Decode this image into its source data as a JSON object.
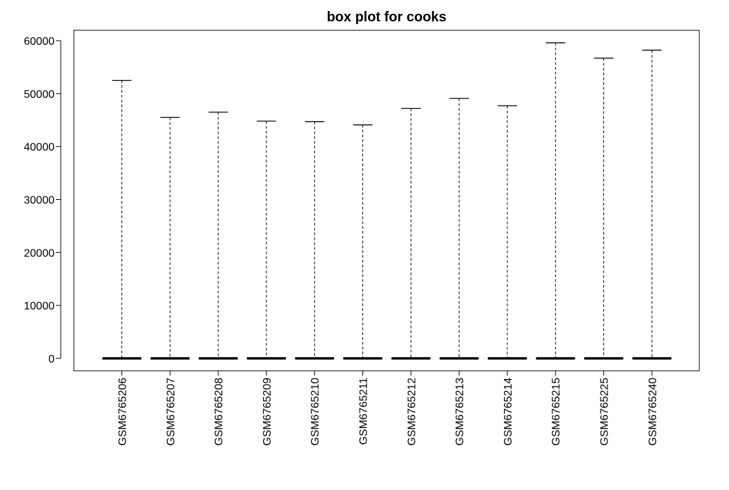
{
  "chart_data": {
    "type": "box",
    "title": "box plot for cooks",
    "xlabel": "",
    "ylabel": "",
    "ylim": [
      0,
      60000
    ],
    "yticks": [
      0,
      10000,
      20000,
      30000,
      40000,
      50000,
      60000
    ],
    "yticklabels": [
      "0",
      "10000",
      "20000",
      "30000",
      "40000",
      "50000",
      "60000"
    ],
    "grid": false,
    "categories": [
      "GSM6765206",
      "GSM6765207",
      "GSM6765208",
      "GSM6765209",
      "GSM6765210",
      "GSM6765211",
      "GSM6765212",
      "GSM6765213",
      "GSM6765214",
      "GSM6765215",
      "GSM6765225",
      "GSM6765240"
    ],
    "boxes": [
      {
        "min": 0,
        "q1": 0,
        "median": 0,
        "q3": 0,
        "max": 52500
      },
      {
        "min": 0,
        "q1": 0,
        "median": 0,
        "q3": 0,
        "max": 45500
      },
      {
        "min": 0,
        "q1": 0,
        "median": 0,
        "q3": 0,
        "max": 46500
      },
      {
        "min": 0,
        "q1": 0,
        "median": 0,
        "q3": 0,
        "max": 44800
      },
      {
        "min": 0,
        "q1": 0,
        "median": 0,
        "q3": 0,
        "max": 44700
      },
      {
        "min": 0,
        "q1": 0,
        "median": 0,
        "q3": 0,
        "max": 44100
      },
      {
        "min": 0,
        "q1": 0,
        "median": 0,
        "q3": 0,
        "max": 47200
      },
      {
        "min": 0,
        "q1": 0,
        "median": 0,
        "q3": 0,
        "max": 49100
      },
      {
        "min": 0,
        "q1": 0,
        "median": 0,
        "q3": 0,
        "max": 47700
      },
      {
        "min": 0,
        "q1": 0,
        "median": 0,
        "q3": 0,
        "max": 59600
      },
      {
        "min": 0,
        "q1": 0,
        "median": 0,
        "q3": 0,
        "max": 56700
      },
      {
        "min": 0,
        "q1": 0,
        "median": 0,
        "q3": 0,
        "max": 58200
      }
    ],
    "colors": {
      "box": "#000000",
      "whisker": "#000000",
      "frame": "#000000"
    }
  }
}
